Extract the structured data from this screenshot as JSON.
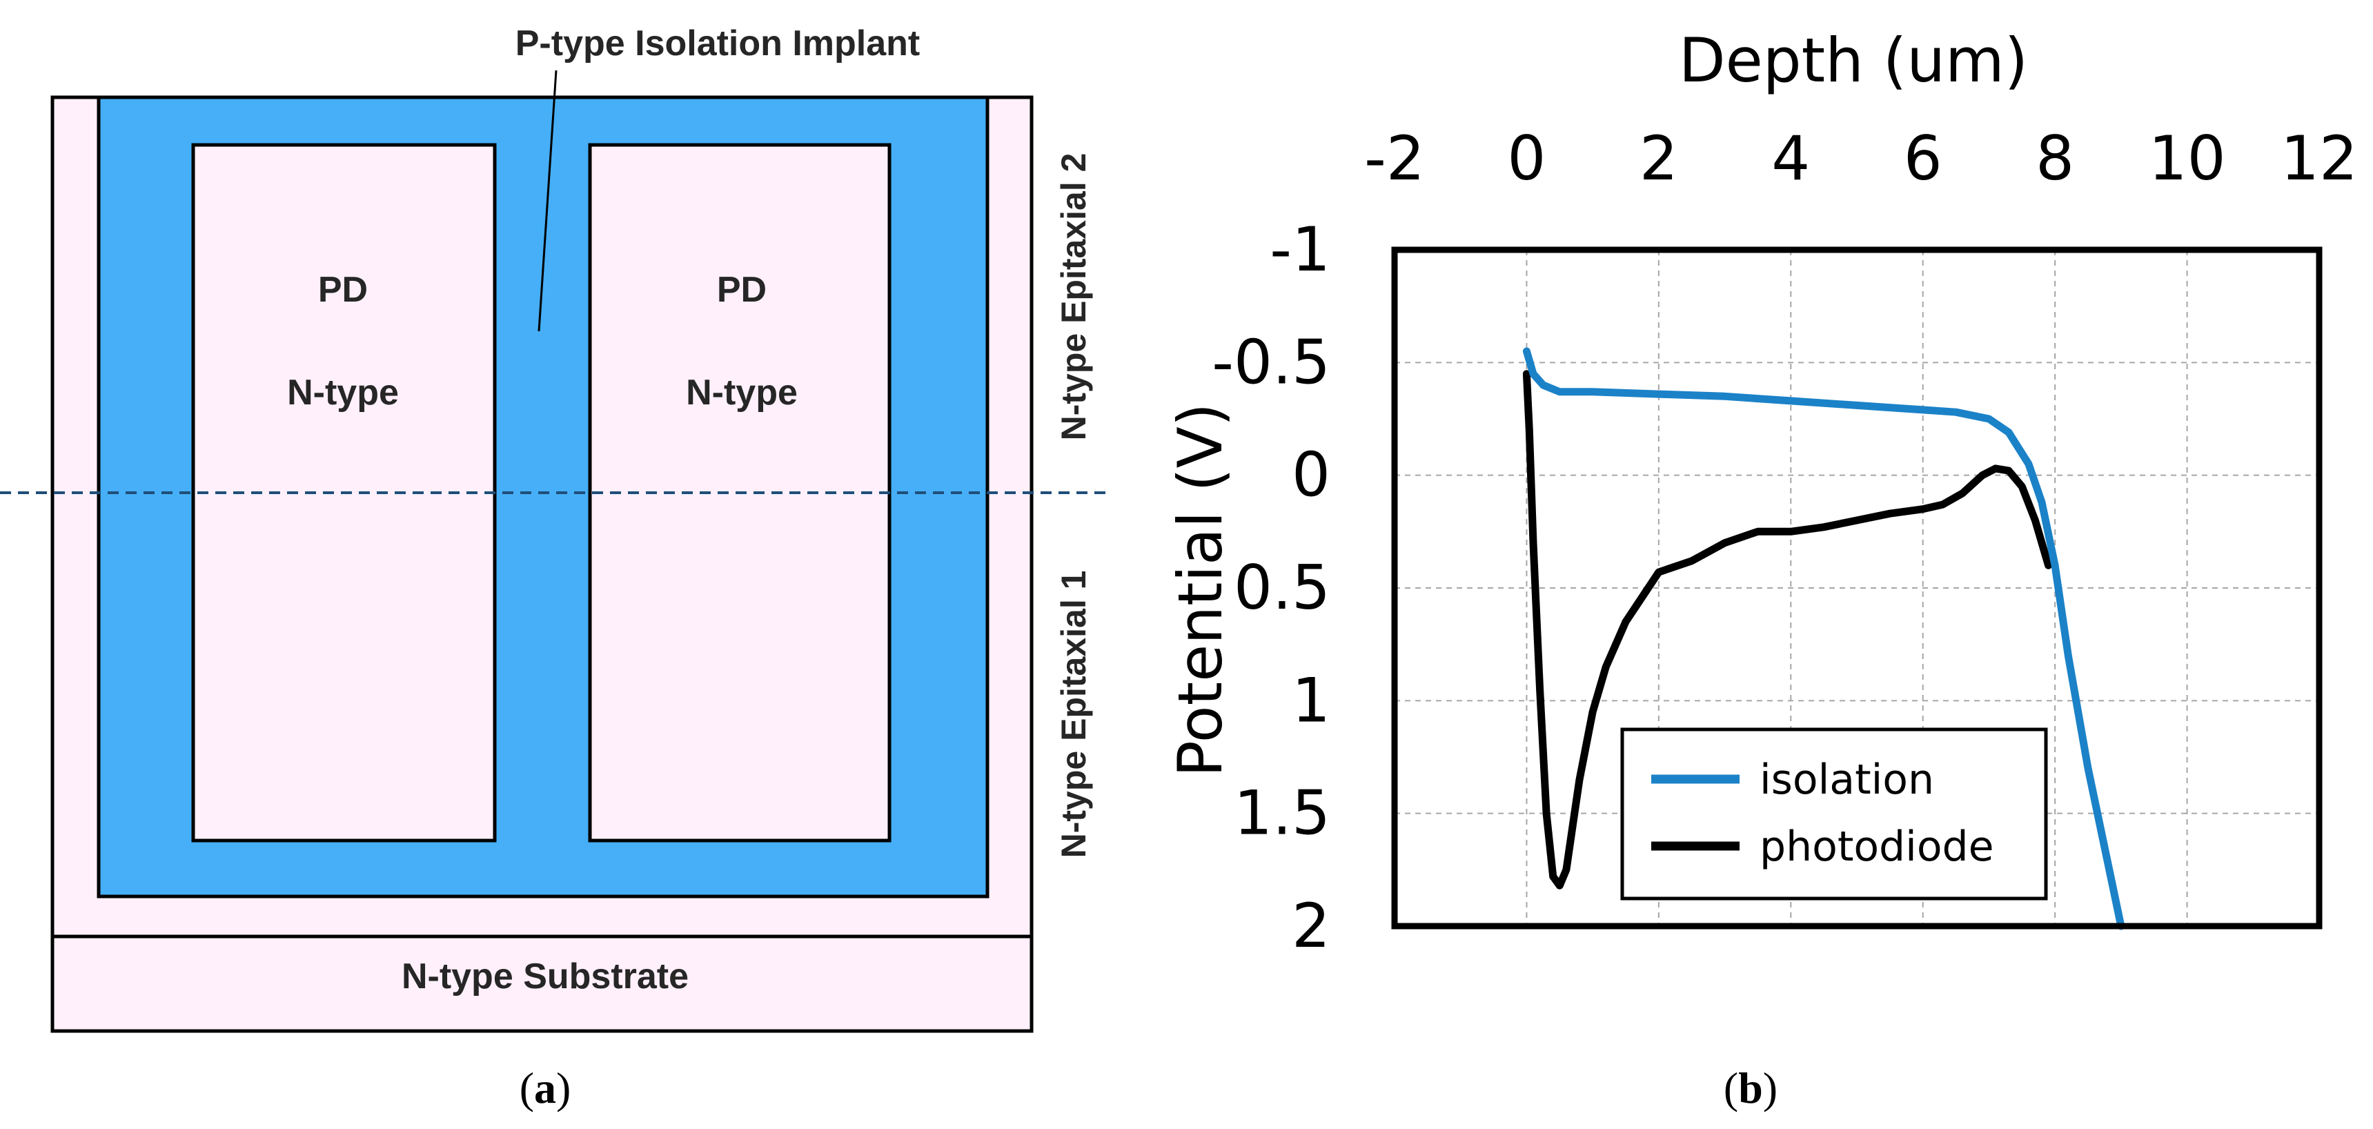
{
  "colors": {
    "isolation_fill": "#46aff7",
    "region_fill": "#fff0fb",
    "cut_line": "#1f4e79",
    "isolation_curve": "#1b82c8",
    "photodiode_curve": "#000000",
    "grid": "#a6a6a6"
  },
  "panel_a": {
    "caption_open": "(",
    "caption_letter": "a",
    "caption_close": ")",
    "implant_label": "P-type Isolation Implant",
    "pd_left": {
      "line1": "PD",
      "line2": "N-type"
    },
    "pd_right": {
      "line1": "PD",
      "line2": "N-type"
    },
    "epi2_label": "N-type Epitaxial 2",
    "epi1_label": "N-type Epitaxial 1",
    "substrate_label": "N-type Substrate"
  },
  "panel_b": {
    "caption_open": "(",
    "caption_letter": "b",
    "caption_close": ")"
  },
  "chart_data": {
    "type": "line",
    "title": "",
    "xlabel": "Depth  (um)",
    "ylabel": "Potential  (V)",
    "x_axis_position": "top",
    "y_axis_inverted": true,
    "xlim": [
      -2,
      12
    ],
    "ylim": [
      -1,
      2
    ],
    "x_ticks": [
      -2,
      0,
      2,
      4,
      6,
      8,
      10,
      12
    ],
    "x_tick_labels": [
      "-2",
      "0",
      "2",
      "4",
      "6",
      "8",
      "10",
      "12"
    ],
    "y_ticks": [
      -1,
      -0.5,
      0,
      0.5,
      1,
      1.5,
      2
    ],
    "y_tick_labels": [
      "-1",
      "-0.5",
      "0",
      "0.5",
      "1",
      "1.5",
      "2"
    ],
    "grid": true,
    "legend_position": "bottom-right",
    "series": [
      {
        "name": "isolation",
        "x": [
          0,
          0.1,
          0.25,
          0.5,
          1,
          2,
          3,
          4,
          5,
          6,
          6.5,
          7,
          7.3,
          7.6,
          7.8,
          8.0,
          8.2,
          8.5,
          9.0
        ],
        "y": [
          -0.55,
          -0.45,
          -0.4,
          -0.37,
          -0.37,
          -0.36,
          -0.35,
          -0.33,
          -0.31,
          -0.29,
          -0.28,
          -0.25,
          -0.19,
          -0.05,
          0.12,
          0.4,
          0.8,
          1.3,
          2.0
        ]
      },
      {
        "name": "photodiode",
        "x": [
          0,
          0.04,
          0.1,
          0.2,
          0.3,
          0.4,
          0.5,
          0.6,
          0.7,
          0.8,
          1.0,
          1.2,
          1.5,
          2.0,
          2.5,
          3.0,
          3.5,
          4.0,
          4.5,
          5.0,
          5.5,
          6.0,
          6.3,
          6.6,
          6.9,
          7.1,
          7.3,
          7.5,
          7.7,
          7.9
        ],
        "y": [
          -0.45,
          -0.2,
          0.3,
          0.95,
          1.5,
          1.78,
          1.82,
          1.75,
          1.55,
          1.35,
          1.05,
          0.85,
          0.65,
          0.43,
          0.38,
          0.3,
          0.25,
          0.25,
          0.23,
          0.2,
          0.17,
          0.15,
          0.13,
          0.08,
          0.0,
          -0.03,
          -0.02,
          0.05,
          0.2,
          0.4
        ]
      }
    ]
  }
}
